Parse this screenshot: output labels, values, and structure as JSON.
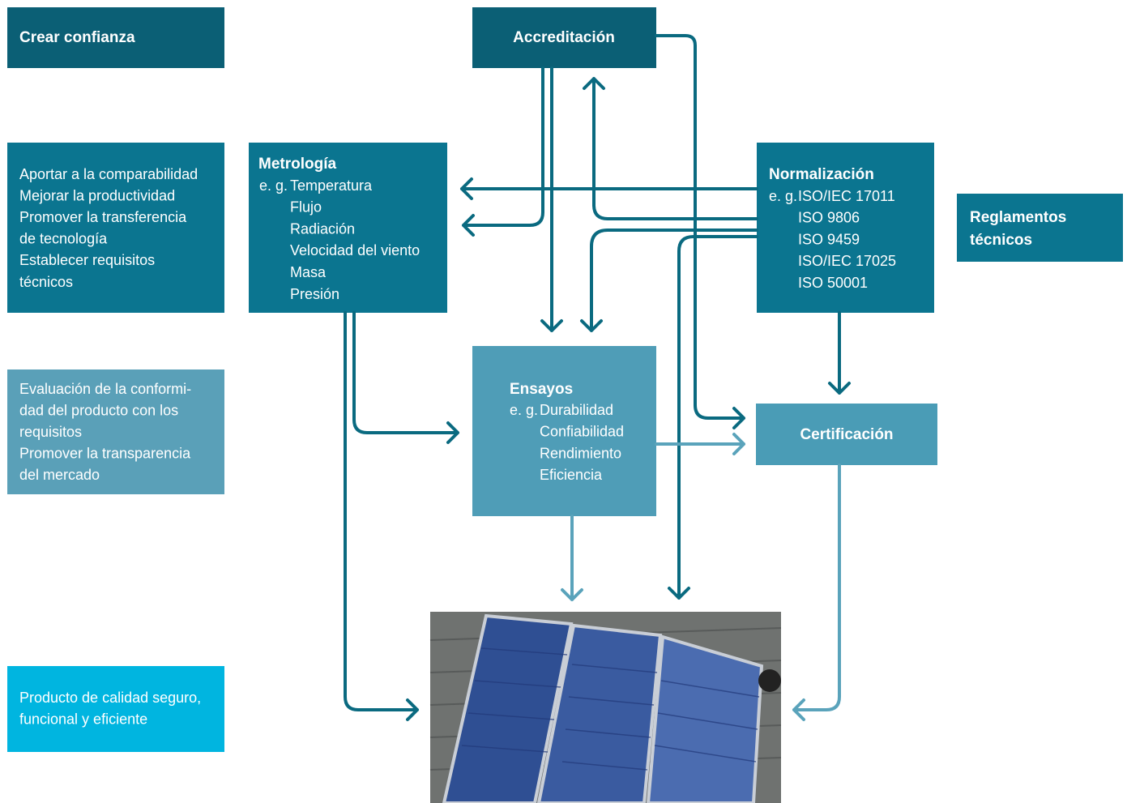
{
  "objectives": [
    {
      "lines": [
        "Crear confianza"
      ]
    },
    {
      "lines": [
        "Aportar a la comparabilidad",
        "Mejorar la productividad",
        "Promover la transferencia",
        "de tecnología",
        "Establecer requisitos",
        "técnicos"
      ]
    },
    {
      "lines": [
        "Evaluación de la conformi-",
        "dad del producto con los",
        "requisitos",
        "Promover la transparencia",
        "del mercado"
      ]
    },
    {
      "lines": [
        "Producto de calidad seguro,",
        "funcional y eficiente"
      ]
    }
  ],
  "nodes": {
    "accreditation": {
      "title": "Accreditación"
    },
    "metrology": {
      "title": "Metrología",
      "prefix": "e. g.",
      "items": [
        "Temperatura",
        "Flujo",
        "Radiación",
        "Velocidad del viento",
        "Masa",
        "Presión"
      ]
    },
    "standardization": {
      "title": "Normalización",
      "prefix": "e. g.",
      "items": [
        "ISO/IEC 17011",
        "ISO 9806",
        "ISO 9459",
        "ISO/IEC 17025",
        "ISO 50001"
      ]
    },
    "regulations": {
      "lines": [
        "Reglamentos",
        "técnicos"
      ]
    },
    "testing": {
      "title": "Ensayos",
      "prefix": "e. g.",
      "items": [
        "Durabilidad",
        "Confiabilidad",
        "Rendimiento",
        "Eficiencia"
      ]
    },
    "certification": {
      "title": "Certificación"
    }
  }
}
